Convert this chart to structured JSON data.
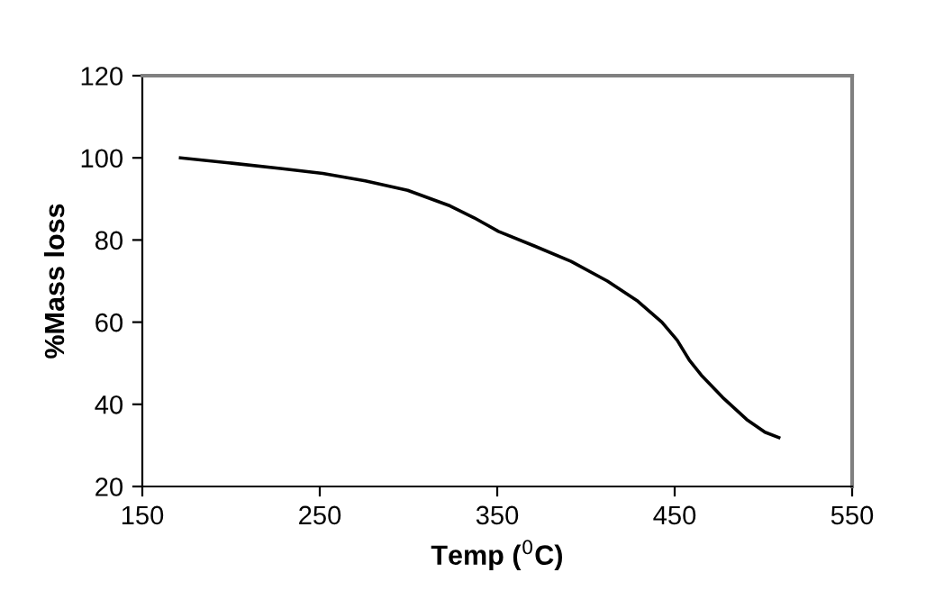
{
  "chart_data": {
    "type": "line",
    "xlabel": "Temp ($^{0}$C)",
    "ylabel": "%Mass loss",
    "xlim": [
      150,
      550
    ],
    "xticks": [
      150,
      250,
      350,
      450,
      550
    ],
    "ylim": [
      20,
      120
    ],
    "yticks": [
      20,
      40,
      60,
      80,
      100,
      120
    ],
    "grid": false,
    "legend": false,
    "marker": "none",
    "line_style": "solid",
    "series": [
      {
        "color": "#000000",
        "x": [
          171.5,
          200.5,
          227.8,
          251.7,
          275.6,
          299.5,
          323.4,
          337,
          350.7,
          371.2,
          391.6,
          412.1,
          429.2,
          442.8,
          451.4,
          458.2,
          465,
          477,
          490.6,
          500.9,
          508.7
        ],
        "values": [
          100,
          98.7,
          97.4,
          96.2,
          94.4,
          92.1,
          88.3,
          85.4,
          82.1,
          78.5,
          74.8,
          70.0,
          65.1,
          60.0,
          55.6,
          50.8,
          47.1,
          41.7,
          36.3,
          33.2,
          31.9
        ]
      }
    ]
  }
}
